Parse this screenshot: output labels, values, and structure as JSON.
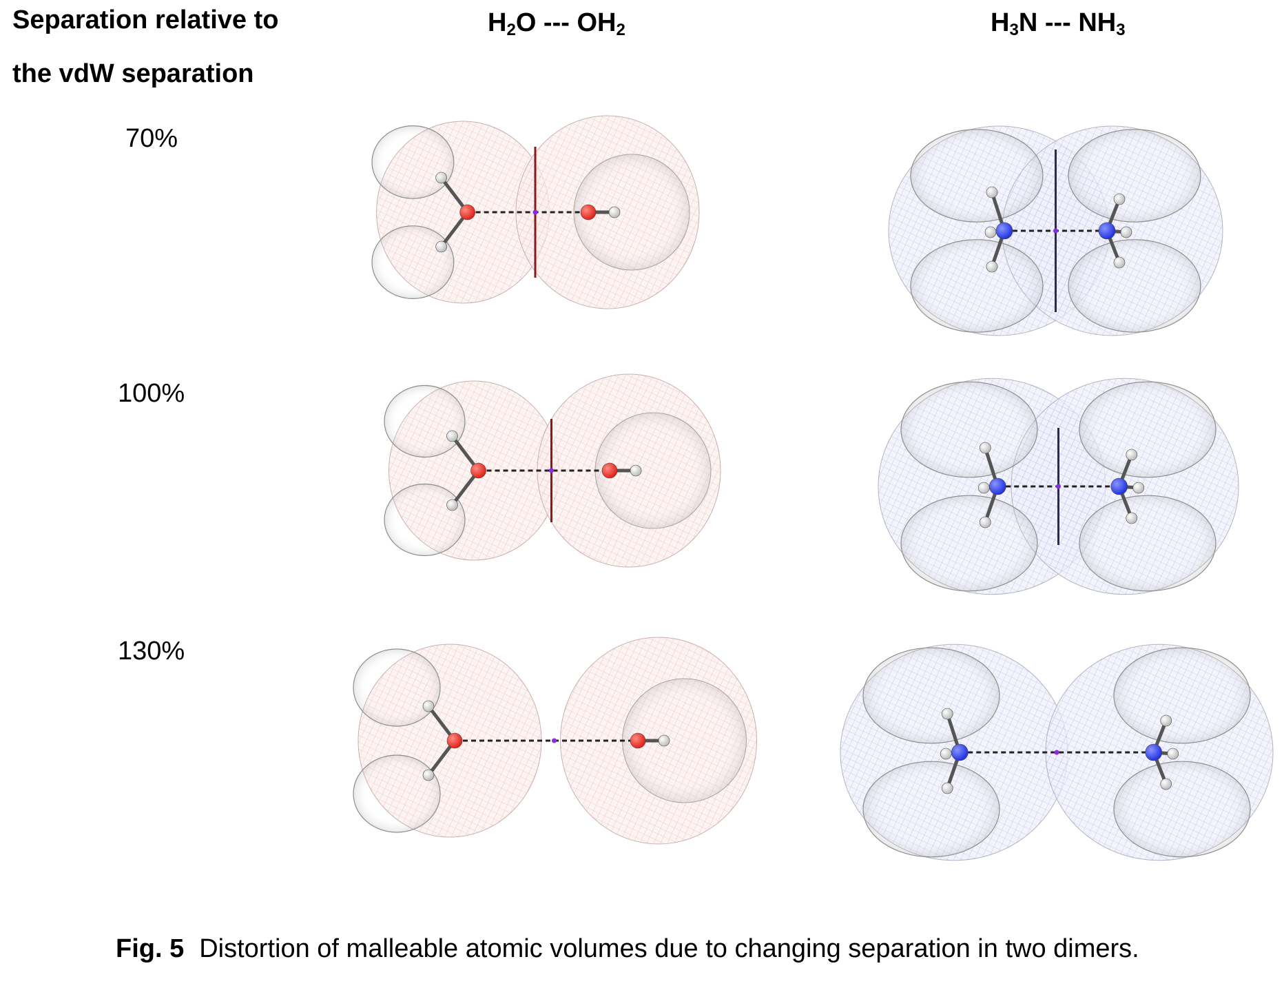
{
  "header": {
    "separation_line1": "Separation relative to",
    "separation_line2": "the vdW separation",
    "water_dimer": {
      "a": "H",
      "a_sub": "2",
      "b": "O --- OH",
      "b_sub": "2"
    },
    "ammonia_dimer": {
      "a": "H",
      "a_sub": "3",
      "b": "N --- NH",
      "b_sub": "3"
    }
  },
  "rows": [
    {
      "label": "70%"
    },
    {
      "label": "100%"
    },
    {
      "label": "130%"
    }
  ],
  "colors": {
    "oxygen": "#e0231b",
    "nitrogen": "#2233e0",
    "hydrogen": "#f2f2f2",
    "water_mesh": "#e08a8a",
    "ammonia_mesh": "#8a8ad8",
    "shell": "#9a9a9a"
  },
  "caption": {
    "label": "Fig. 5",
    "text": "Distortion of malleable atomic volumes due to changing separation in two dimers."
  }
}
